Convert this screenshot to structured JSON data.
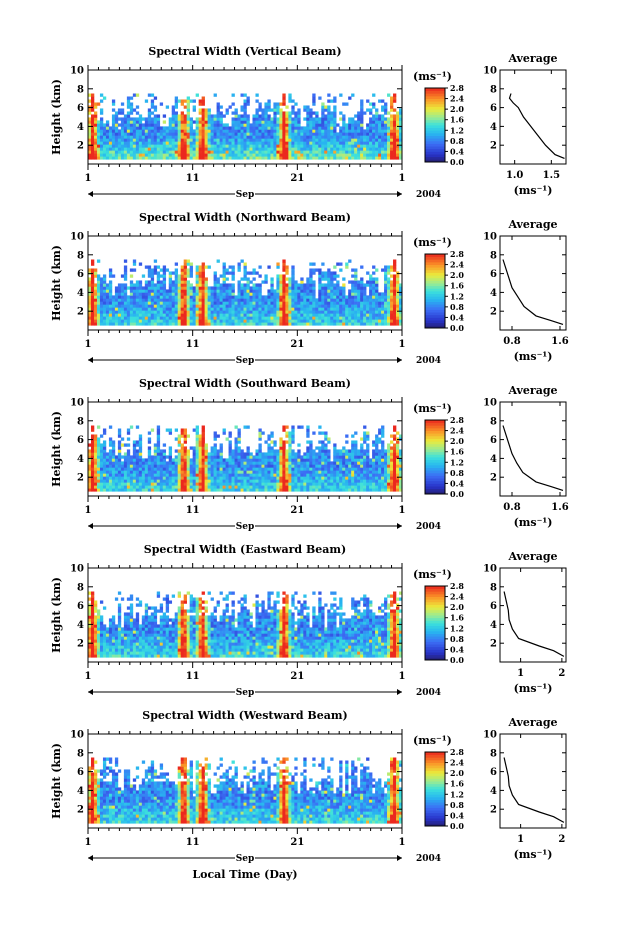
{
  "figure": {
    "xlabel": "Local Time (Day)"
  },
  "chart_data": [
    {
      "type": "heatmap",
      "title": "Spectral Width (Vertical Beam)",
      "ylabel": "Height (km)",
      "xticklabels": [
        "1",
        "11",
        "21",
        "1"
      ],
      "month_label": "Sep",
      "year_label": "2004",
      "ylim": [
        0,
        10
      ],
      "yticks": [
        "2",
        "4",
        "6",
        "8",
        "10"
      ],
      "colorbar": {
        "unit": "(ms⁻¹)",
        "ticks": [
          "0.0",
          "0.4",
          "0.8",
          "1.2",
          "1.6",
          "2.0",
          "2.4",
          "2.8"
        ],
        "range": [
          0,
          2.8
        ]
      },
      "data_top_km": 7.5,
      "variability": 0.9,
      "average": {
        "title": "Average",
        "xlabel": "(ms⁻¹)",
        "xticks": [
          "1.0",
          "1.5"
        ],
        "xlim": [
          0.8,
          1.7
        ],
        "ylim": [
          0,
          10
        ],
        "yticks": [
          "2",
          "4",
          "6",
          "8",
          "10"
        ],
        "profile": [
          {
            "height": 7.5,
            "width": 0.95
          },
          {
            "height": 7.0,
            "width": 0.93
          },
          {
            "height": 6.5,
            "width": 0.98
          },
          {
            "height": 6.0,
            "width": 1.05
          },
          {
            "height": 5.0,
            "width": 1.12
          },
          {
            "height": 4.0,
            "width": 1.22
          },
          {
            "height": 3.0,
            "width": 1.32
          },
          {
            "height": 2.0,
            "width": 1.42
          },
          {
            "height": 1.0,
            "width": 1.55
          },
          {
            "height": 0.6,
            "width": 1.68
          }
        ]
      }
    },
    {
      "type": "heatmap",
      "title": "Spectral Width (Northward Beam)",
      "ylabel": "Height (km)",
      "xticklabels": [
        "1",
        "11",
        "21",
        "1"
      ],
      "month_label": "Sep",
      "year_label": "2004",
      "ylim": [
        0,
        10
      ],
      "yticks": [
        "2",
        "4",
        "6",
        "8",
        "10"
      ],
      "colorbar": {
        "unit": "(ms⁻¹)",
        "ticks": [
          "0.0",
          "0.4",
          "0.8",
          "1.2",
          "1.6",
          "2.0",
          "2.4",
          "2.8"
        ],
        "range": [
          0,
          2.8
        ]
      },
      "data_top_km": 7.5,
      "variability": 0.55,
      "average": {
        "title": "Average",
        "xlabel": "(ms⁻¹)",
        "xticks": [
          "0.8",
          "1.6"
        ],
        "xlim": [
          0.6,
          1.7
        ],
        "ylim": [
          0,
          10
        ],
        "yticks": [
          "2",
          "4",
          "6",
          "8",
          "10"
        ],
        "profile": [
          {
            "height": 7.5,
            "width": 0.65
          },
          {
            "height": 6.5,
            "width": 0.7
          },
          {
            "height": 5.5,
            "width": 0.75
          },
          {
            "height": 4.5,
            "width": 0.8
          },
          {
            "height": 3.5,
            "width": 0.9
          },
          {
            "height": 2.5,
            "width": 1.0
          },
          {
            "height": 1.5,
            "width": 1.2
          },
          {
            "height": 1.0,
            "width": 1.45
          },
          {
            "height": 0.6,
            "width": 1.65
          }
        ]
      }
    },
    {
      "type": "heatmap",
      "title": "Spectral Width (Southward Beam)",
      "ylabel": "Height (km)",
      "xticklabels": [
        "1",
        "11",
        "21",
        "1"
      ],
      "month_label": "Sep",
      "year_label": "2004",
      "ylim": [
        0,
        10
      ],
      "yticks": [
        "2",
        "4",
        "6",
        "8",
        "10"
      ],
      "colorbar": {
        "unit": "(ms⁻¹)",
        "ticks": [
          "0.0",
          "0.4",
          "0.8",
          "1.2",
          "1.6",
          "2.0",
          "2.4",
          "2.8"
        ],
        "range": [
          0,
          2.8
        ]
      },
      "data_top_km": 7.5,
      "variability": 0.55,
      "average": {
        "title": "Average",
        "xlabel": "(ms⁻¹)",
        "xticks": [
          "0.8",
          "1.6"
        ],
        "xlim": [
          0.6,
          1.7
        ],
        "ylim": [
          0,
          10
        ],
        "yticks": [
          "2",
          "4",
          "6",
          "8",
          "10"
        ],
        "profile": [
          {
            "height": 7.5,
            "width": 0.65
          },
          {
            "height": 6.5,
            "width": 0.7
          },
          {
            "height": 5.5,
            "width": 0.75
          },
          {
            "height": 4.5,
            "width": 0.8
          },
          {
            "height": 3.5,
            "width": 0.88
          },
          {
            "height": 2.5,
            "width": 0.98
          },
          {
            "height": 1.5,
            "width": 1.2
          },
          {
            "height": 1.0,
            "width": 1.45
          },
          {
            "height": 0.6,
            "width": 1.65
          }
        ]
      }
    },
    {
      "type": "heatmap",
      "title": "Spectral Width (Eastward Beam)",
      "ylabel": "Height (km)",
      "xticklabels": [
        "1",
        "11",
        "21",
        "1"
      ],
      "month_label": "Sep",
      "year_label": "2004",
      "ylim": [
        0,
        10
      ],
      "yticks": [
        "2",
        "4",
        "6",
        "8",
        "10"
      ],
      "colorbar": {
        "unit": "(ms⁻¹)",
        "ticks": [
          "0.0",
          "0.4",
          "0.8",
          "1.2",
          "1.6",
          "2.0",
          "2.4",
          "2.8"
        ],
        "range": [
          0,
          2.8
        ]
      },
      "data_top_km": 7.5,
      "variability": 0.6,
      "average": {
        "title": "Average",
        "xlabel": "(ms⁻¹)",
        "xticks": [
          "1",
          "2"
        ],
        "xlim": [
          0.5,
          2.1
        ],
        "ylim": [
          0,
          10
        ],
        "yticks": [
          "2",
          "4",
          "6",
          "8",
          "10"
        ],
        "profile": [
          {
            "height": 7.5,
            "width": 0.6
          },
          {
            "height": 6.5,
            "width": 0.65
          },
          {
            "height": 5.5,
            "width": 0.7
          },
          {
            "height": 4.5,
            "width": 0.72
          },
          {
            "height": 3.5,
            "width": 0.8
          },
          {
            "height": 2.5,
            "width": 0.95
          },
          {
            "height": 1.7,
            "width": 1.45
          },
          {
            "height": 1.2,
            "width": 1.8
          },
          {
            "height": 0.6,
            "width": 2.05
          }
        ]
      }
    },
    {
      "type": "heatmap",
      "title": "Spectral Width (Westward Beam)",
      "ylabel": "Height (km)",
      "xticklabels": [
        "1",
        "11",
        "21",
        "1"
      ],
      "month_label": "Sep",
      "year_label": "2004",
      "ylim": [
        0,
        10
      ],
      "yticks": [
        "2",
        "4",
        "6",
        "8",
        "10"
      ],
      "colorbar": {
        "unit": "(ms⁻¹)",
        "ticks": [
          "0.0",
          "0.4",
          "0.8",
          "1.2",
          "1.6",
          "2.0",
          "2.4",
          "2.8"
        ],
        "range": [
          0,
          2.8
        ]
      },
      "data_top_km": 7.5,
      "variability": 0.6,
      "average": {
        "title": "Average",
        "xlabel": "(ms⁻¹)",
        "xticks": [
          "1",
          "2"
        ],
        "xlim": [
          0.5,
          2.1
        ],
        "ylim": [
          0,
          10
        ],
        "yticks": [
          "2",
          "4",
          "6",
          "8",
          "10"
        ],
        "profile": [
          {
            "height": 7.5,
            "width": 0.6
          },
          {
            "height": 6.5,
            "width": 0.65
          },
          {
            "height": 5.5,
            "width": 0.7
          },
          {
            "height": 4.5,
            "width": 0.72
          },
          {
            "height": 3.5,
            "width": 0.8
          },
          {
            "height": 2.5,
            "width": 0.95
          },
          {
            "height": 1.7,
            "width": 1.45
          },
          {
            "height": 1.2,
            "width": 1.8
          },
          {
            "height": 0.6,
            "width": 2.05
          }
        ]
      }
    }
  ]
}
